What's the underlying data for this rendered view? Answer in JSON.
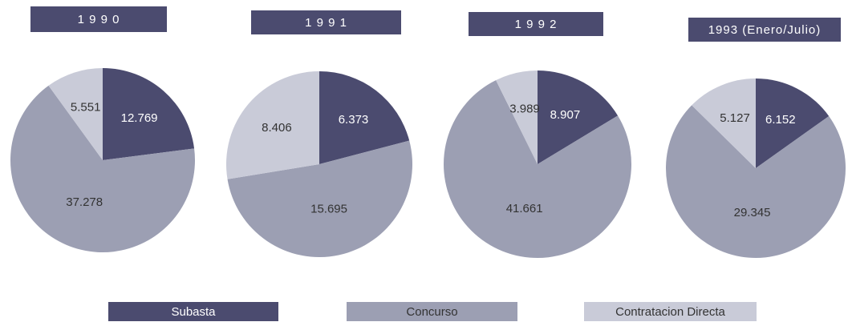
{
  "chart_data": {
    "type": "pie",
    "categories": [
      "Subasta",
      "Concurso",
      "Contratacion Directa"
    ],
    "colors": [
      "#4b4b6f",
      "#9c9fb3",
      "#c9cbd8"
    ],
    "series": [
      {
        "name": "1 9 9 0",
        "values": [
          12.769,
          37.278,
          5.551
        ]
      },
      {
        "name": "1 9 9 1",
        "values": [
          6.373,
          15.695,
          8.406
        ]
      },
      {
        "name": "1 9 9 2",
        "values": [
          8.907,
          41.661,
          3.989
        ]
      },
      {
        "name": "1993 (Enero/Julio)",
        "values": [
          6.152,
          29.345,
          5.127
        ]
      }
    ]
  }
}
